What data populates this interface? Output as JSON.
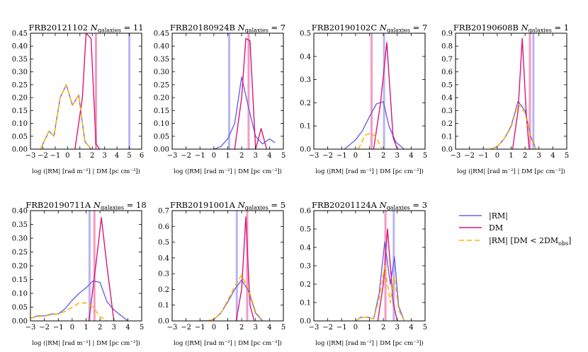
{
  "colors": {
    "rm": "#6B63E8",
    "dm": "#D8167B",
    "rm_cut": "#FFB400",
    "rm_obs": "#B9B4F5",
    "dm_obs": "#F29BC2"
  },
  "legend": {
    "items": [
      {
        "key": "rm",
        "label": "|RM|",
        "style": "solid"
      },
      {
        "key": "dm",
        "label": "DM",
        "style": "solid"
      },
      {
        "key": "rm_cut",
        "label": "|RM| [DM < 2DM",
        "sub": "obs",
        "tail": "]",
        "style": "dashed"
      }
    ]
  },
  "chart_data": [
    {
      "type": "line",
      "id": "frb20121102",
      "title_prefix": "FRB20121102",
      "n_label": "N",
      "n_sub": "galaxies",
      "n_value": "= 11",
      "xlabel": "log (|RM| [rad m⁻²] | DM [pc cm⁻³])",
      "xlim": [
        -3,
        6
      ],
      "ylim": [
        0,
        0.45
      ],
      "xticks": [
        -3,
        -2,
        -1,
        0,
        1,
        2,
        3,
        4,
        5,
        6
      ],
      "xtick_labels": [
        "−3",
        "−2",
        "−1",
        "0",
        "1",
        "2",
        "3",
        "4",
        "5",
        "6"
      ],
      "yticks": [
        0,
        0.05,
        0.1,
        0.15,
        0.2,
        0.25,
        0.3,
        0.35,
        0.4,
        0.45
      ],
      "ytick_labels": [
        "0.00",
        "0.05",
        "0.10",
        "0.15",
        "0.20",
        "0.25",
        "0.30",
        "0.35",
        "0.40",
        "0.45"
      ],
      "series": [
        {
          "name": "|RM|",
          "key": "rm",
          "x": [
            -2.2,
            -1.5,
            -1.1,
            -0.6,
            -0.1,
            0.4,
            0.9,
            1.4,
            1.9
          ],
          "y": [
            0.0,
            0.07,
            0.05,
            0.2,
            0.25,
            0.17,
            0.21,
            0.03,
            0.0
          ]
        },
        {
          "name": "DM",
          "key": "dm",
          "x": [
            0.6,
            1.2,
            1.5,
            1.9,
            2.3,
            2.6
          ],
          "y": [
            0.0,
            0.2,
            0.45,
            0.43,
            0.02,
            0.0
          ]
        },
        {
          "name": "|RM| [DM < 2DM_obs]",
          "key": "rm_cut",
          "x": [
            -2.2,
            -1.5,
            -1.1,
            -0.6,
            -0.1,
            0.4,
            0.9,
            1.4,
            1.9
          ],
          "y": [
            0.0,
            0.07,
            0.05,
            0.2,
            0.25,
            0.17,
            0.21,
            0.03,
            0.0
          ]
        }
      ],
      "vlines": [
        {
          "key": "rm_obs",
          "x": 5.0
        },
        {
          "key": "dm_obs",
          "x": 2.3
        }
      ]
    },
    {
      "type": "line",
      "id": "frb20180924b",
      "title_prefix": "FRB20180924B",
      "n_label": "N",
      "n_sub": "galaxies",
      "n_value": "= 7",
      "xlabel": "log (|RM| [rad m⁻²] | DM [pc cm⁻³])",
      "xlim": [
        -3,
        5
      ],
      "ylim": [
        0,
        0.45
      ],
      "xticks": [
        -3,
        -2,
        -1,
        0,
        1,
        2,
        3,
        4,
        5
      ],
      "xtick_labels": [
        "−3",
        "−2",
        "−1",
        "0",
        "1",
        "2",
        "3",
        "4",
        "5"
      ],
      "yticks": [
        0,
        0.05,
        0.1,
        0.15,
        0.2,
        0.25,
        0.3,
        0.35,
        0.4,
        0.45
      ],
      "ytick_labels": [
        "0.00",
        "0.05",
        "0.10",
        "0.15",
        "0.20",
        "0.25",
        "0.30",
        "0.35",
        "0.40",
        "0.45"
      ],
      "series": [
        {
          "name": "|RM|",
          "key": "rm",
          "x": [
            0,
            0.5,
            1.0,
            1.5,
            2.0,
            2.5,
            3.0,
            3.5,
            4.0,
            4.4
          ],
          "y": [
            0.0,
            0.01,
            0.04,
            0.1,
            0.28,
            0.16,
            0.05,
            0.02,
            0.04,
            0.025
          ]
        },
        {
          "name": "DM",
          "key": "dm",
          "x": [
            1.5,
            2.0,
            2.3,
            2.6,
            3.0,
            3.4,
            3.8
          ],
          "y": [
            0.0,
            0.2,
            0.43,
            0.42,
            0.0,
            0.08,
            0.0
          ]
        }
      ],
      "vlines": [
        {
          "key": "rm_obs",
          "x": 1.1
        },
        {
          "key": "dm_obs",
          "x": 2.5
        }
      ]
    },
    {
      "type": "line",
      "id": "frb20190102c",
      "title_prefix": "FRB20190102C",
      "n_label": "N",
      "n_sub": "galaxies",
      "n_value": "= 7",
      "xlabel": "log (|RM| [rad m⁻²] | DM [pc cm⁻³])",
      "xlim": [
        -3,
        5
      ],
      "ylim": [
        0,
        0.5
      ],
      "xticks": [
        -3,
        -2,
        -1,
        0,
        1,
        2,
        3,
        4,
        5
      ],
      "xtick_labels": [
        "−3",
        "−2",
        "−1",
        "0",
        "1",
        "2",
        "3",
        "4",
        "5"
      ],
      "yticks": [
        0,
        0.1,
        0.2,
        0.3,
        0.4,
        0.5
      ],
      "ytick_labels": [
        "0.0",
        "0.1",
        "0.2",
        "0.3",
        "0.4",
        "0.5"
      ],
      "series": [
        {
          "name": "|RM|",
          "key": "rm",
          "x": [
            -0.8,
            0,
            0.5,
            1.0,
            1.5,
            2.0,
            2.4,
            2.9,
            3.5
          ],
          "y": [
            0.0,
            0.04,
            0.08,
            0.14,
            0.195,
            0.205,
            0.1,
            0.03,
            0.0
          ]
        },
        {
          "name": "DM",
          "key": "dm",
          "x": [
            1.3,
            1.8,
            2.25,
            2.7,
            3.0
          ],
          "y": [
            0.0,
            0.2,
            0.46,
            0.05,
            0.0
          ]
        },
        {
          "name": "|RM| [DM < 2DM_obs]",
          "key": "rm_cut",
          "x": [
            0.2,
            0.7,
            1.1,
            1.5,
            1.9
          ],
          "y": [
            0.0,
            0.06,
            0.07,
            0.05,
            0.0
          ]
        }
      ],
      "vlines": [
        {
          "key": "rm_obs",
          "x": 2.05
        },
        {
          "key": "dm_obs",
          "x": 1.15
        }
      ]
    },
    {
      "type": "line",
      "id": "frb20190608b",
      "title_prefix": "FRB20190608B",
      "n_label": "N",
      "n_sub": "galaxies",
      "n_value": "= 1",
      "xlabel": "log (|RM| [rad m⁻²] | DM [pc cm⁻³])",
      "xlim": [
        -3,
        5
      ],
      "ylim": [
        0,
        0.9
      ],
      "xticks": [
        -3,
        -2,
        -1,
        0,
        1,
        2,
        3,
        4,
        5
      ],
      "xtick_labels": [
        "−3",
        "−2",
        "−1",
        "0",
        "1",
        "2",
        "3",
        "4",
        "5"
      ],
      "yticks": [
        0,
        0.1,
        0.2,
        0.3,
        0.4,
        0.5,
        0.6,
        0.7,
        0.8,
        0.9
      ],
      "ytick_labels": [
        "0.0",
        "0.1",
        "0.2",
        "0.3",
        "0.4",
        "0.5",
        "0.6",
        "0.7",
        "0.8",
        "0.9"
      ],
      "series": [
        {
          "name": "|RM|",
          "key": "rm",
          "x": [
            -0.5,
            0,
            0.5,
            1.0,
            1.5,
            2.0,
            2.4,
            2.8
          ],
          "y": [
            0.0,
            0.02,
            0.08,
            0.18,
            0.37,
            0.3,
            0.1,
            0.0
          ]
        },
        {
          "name": "DM",
          "key": "dm",
          "x": [
            1.1,
            1.5,
            1.8,
            2.1,
            2.3
          ],
          "y": [
            0.0,
            0.3,
            0.86,
            0.25,
            0.0
          ]
        },
        {
          "name": "|RM| [DM < 2DM_obs]",
          "key": "rm_cut",
          "x": [
            -0.5,
            0,
            0.5,
            1.0,
            1.5,
            2.0,
            2.4,
            2.8
          ],
          "y": [
            0.0,
            0.02,
            0.08,
            0.17,
            0.35,
            0.28,
            0.09,
            0.0
          ]
        }
      ],
      "vlines": [
        {
          "key": "rm_obs",
          "x": 2.6
        },
        {
          "key": "dm_obs",
          "x": 2.35
        }
      ]
    },
    {
      "type": "line",
      "id": "frb20190711a",
      "title_prefix": "FRB20190711A",
      "n_label": "N",
      "n_sub": "galaxies",
      "n_value": "= 18",
      "xlabel": "log (|RM| [rad m⁻²] | DM [pc cm⁻³])",
      "xlim": [
        -3,
        5
      ],
      "ylim": [
        0,
        0.4
      ],
      "xticks": [
        -3,
        -2,
        -1,
        0,
        1,
        2,
        3,
        4,
        5
      ],
      "xtick_labels": [
        "−3",
        "−2",
        "−1",
        "0",
        "1",
        "2",
        "3",
        "4",
        "5"
      ],
      "yticks": [
        0,
        0.05,
        0.1,
        0.15,
        0.2,
        0.25,
        0.3,
        0.35,
        0.4
      ],
      "ytick_labels": [
        "0.00",
        "0.05",
        "0.10",
        "0.15",
        "0.20",
        "0.25",
        "0.30",
        "0.35",
        "0.40"
      ],
      "series": [
        {
          "name": "|RM|",
          "key": "rm",
          "x": [
            -3,
            -2.5,
            -2,
            -1.5,
            -1,
            -0.5,
            0,
            0.5,
            1.0,
            1.5,
            2.0,
            2.5,
            3.0,
            3.5,
            4.0
          ],
          "y": [
            0.01,
            0.018,
            0.018,
            0.025,
            0.025,
            0.045,
            0.075,
            0.1,
            0.12,
            0.145,
            0.14,
            0.07,
            0.04,
            0.02,
            0.0
          ]
        },
        {
          "name": "DM",
          "key": "dm",
          "x": [
            1.2,
            1.7,
            2.1,
            2.5,
            3.0
          ],
          "y": [
            0.0,
            0.2,
            0.375,
            0.2,
            0.0
          ]
        },
        {
          "name": "|RM| [DM < 2DM_obs]",
          "key": "rm_cut",
          "x": [
            -3,
            -2.5,
            -2,
            -1.5,
            -1,
            -0.5,
            0,
            0.5,
            1.0,
            1.5,
            2.0,
            2.5
          ],
          "y": [
            0.01,
            0.015,
            0.018,
            0.022,
            0.025,
            0.035,
            0.05,
            0.065,
            0.065,
            0.05,
            0.015,
            0.0
          ]
        }
      ],
      "vlines": [
        {
          "key": "rm_obs",
          "x": 1.25
        },
        {
          "key": "dm_obs",
          "x": 1.6
        }
      ]
    },
    {
      "type": "line",
      "id": "frb20191001a",
      "title_prefix": "FRB20191001A",
      "n_label": "N",
      "n_sub": "galaxies",
      "n_value": "= 5",
      "xlabel": "log (|RM| [rad m⁻²] | DM [pc cm⁻³])",
      "xlim": [
        -3,
        5
      ],
      "ylim": [
        0,
        0.7
      ],
      "xticks": [
        -3,
        -2,
        -1,
        0,
        1,
        2,
        3,
        4,
        5
      ],
      "xtick_labels": [
        "−3",
        "−2",
        "−1",
        "0",
        "1",
        "2",
        "3",
        "4",
        "5"
      ],
      "yticks": [
        0,
        0.1,
        0.2,
        0.3,
        0.4,
        0.5,
        0.6,
        0.7
      ],
      "ytick_labels": [
        "0.0",
        "0.1",
        "0.2",
        "0.3",
        "0.4",
        "0.5",
        "0.6",
        "0.7"
      ],
      "series": [
        {
          "name": "|RM|",
          "key": "rm",
          "x": [
            -1,
            -0.5,
            0,
            0.5,
            1.0,
            1.5,
            2.0,
            2.5,
            3.0,
            3.5
          ],
          "y": [
            0.0,
            0.0,
            0.01,
            0.05,
            0.12,
            0.2,
            0.26,
            0.19,
            0.05,
            0.0
          ]
        },
        {
          "name": "DM",
          "key": "dm",
          "x": [
            1.6,
            2.0,
            2.3,
            2.6,
            2.9
          ],
          "y": [
            0.0,
            0.2,
            0.66,
            0.1,
            0.0
          ]
        },
        {
          "name": "|RM| [DM < 2DM_obs]",
          "key": "rm_cut",
          "x": [
            -1,
            -0.5,
            0,
            0.5,
            1.0,
            1.5,
            2.0,
            2.5,
            3.0,
            3.5
          ],
          "y": [
            0.0,
            0.0,
            0.01,
            0.05,
            0.13,
            0.22,
            0.29,
            0.2,
            0.06,
            0.0
          ]
        }
      ],
      "vlines": [
        {
          "key": "rm_obs",
          "x": 1.65
        },
        {
          "key": "dm_obs",
          "x": 2.4
        }
      ]
    },
    {
      "type": "line",
      "id": "frb20201124a",
      "title_prefix": "FRB20201124A",
      "n_label": "N",
      "n_sub": "galaxies",
      "n_value": "= 3",
      "xlabel": "log (|RM| [rad m⁻²] | DM [pc cm⁻³])",
      "xlim": [
        -3,
        5
      ],
      "ylim": [
        0,
        0.6
      ],
      "xticks": [
        -3,
        -2,
        -1,
        0,
        1,
        2,
        3,
        4,
        5
      ],
      "xtick_labels": [
        "−3",
        "−2",
        "−1",
        "0",
        "1",
        "2",
        "3",
        "4",
        "5"
      ],
      "yticks": [
        0,
        0.1,
        0.2,
        0.3,
        0.4,
        0.5,
        0.6
      ],
      "ytick_labels": [
        "0.0",
        "0.1",
        "0.2",
        "0.3",
        "0.4",
        "0.5",
        "0.6"
      ],
      "series": [
        {
          "name": "|RM|",
          "key": "rm",
          "x": [
            0,
            0.4,
            0.9,
            1.3,
            1.7,
            2.1,
            2.5,
            2.8,
            3.1,
            3.5
          ],
          "y": [
            0.0,
            0.02,
            0.02,
            0.01,
            0.15,
            0.43,
            0.2,
            0.35,
            0.08,
            0.0
          ]
        },
        {
          "name": "DM",
          "key": "dm",
          "x": [
            1.6,
            2.0,
            2.3,
            2.7,
            3.0
          ],
          "y": [
            0.0,
            0.2,
            0.5,
            0.1,
            0.0
          ]
        },
        {
          "name": "|RM| [DM < 2DM_obs]",
          "key": "rm_cut",
          "x": [
            0,
            0.4,
            0.9,
            1.3,
            1.7,
            2.1,
            2.5,
            2.8,
            3.1,
            3.5
          ],
          "y": [
            0.0,
            0.02,
            0.02,
            0.01,
            0.12,
            0.3,
            0.1,
            0.24,
            0.06,
            0.0
          ]
        }
      ],
      "vlines": [
        {
          "key": "rm_obs",
          "x": 2.75
        },
        {
          "key": "dm_obs",
          "x": 2.15
        }
      ]
    }
  ]
}
